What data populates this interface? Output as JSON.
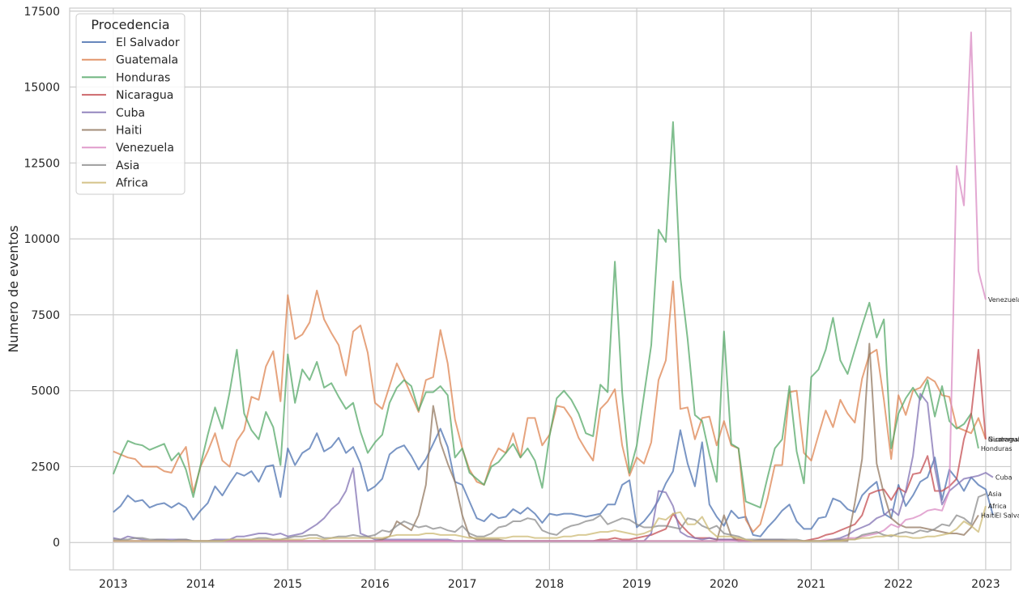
{
  "chart_data": {
    "type": "line",
    "xlabel": "",
    "ylabel": "Numero de eventos",
    "legend_title": "Procedencia",
    "legend_position": "top-left",
    "grid": true,
    "xlim": [
      "2012-07-01",
      "2023-04-15"
    ],
    "ylim": [
      -900,
      17600
    ],
    "x_ticks": [
      "2013",
      "2014",
      "2015",
      "2016",
      "2017",
      "2018",
      "2019",
      "2020",
      "2021",
      "2022",
      "2023"
    ],
    "y_ticks": [
      0,
      2500,
      5000,
      7500,
      10000,
      12500,
      15000,
      17500
    ],
    "x_start_month": "2013-01",
    "series": [
      {
        "name": "El Salvador",
        "color": "#4c72b0",
        "end_label": "El Salvador",
        "values": [
          1000,
          1200,
          1550,
          1350,
          1400,
          1150,
          1250,
          1300,
          1150,
          1300,
          1150,
          750,
          1050,
          1300,
          1850,
          1550,
          1950,
          2300,
          2200,
          2350,
          2000,
          2500,
          2550,
          1500,
          3100,
          2550,
          2950,
          3100,
          3600,
          3000,
          3150,
          3450,
          2950,
          3150,
          2600,
          1700,
          1850,
          2100,
          2900,
          3100,
          3200,
          2850,
          2400,
          2750,
          3250,
          3750,
          3150,
          2000,
          1900,
          1350,
          800,
          700,
          950,
          800,
          850,
          1100,
          950,
          1150,
          950,
          650,
          950,
          900,
          950,
          950,
          900,
          850,
          900,
          950,
          1250,
          1250,
          1900,
          2050,
          500,
          700,
          1000,
          1400,
          1950,
          2350,
          3700,
          2600,
          1850,
          3300,
          1250,
          850,
          550,
          1050,
          800,
          850,
          250,
          200,
          500,
          750,
          1050,
          1250,
          700,
          450,
          450,
          800,
          850,
          1450,
          1350,
          1100,
          1000,
          1550,
          1800,
          2000,
          950,
          800,
          1900,
          1200,
          1550,
          2000,
          2150,
          2800,
          1400,
          2400,
          2100,
          1700,
          2150,
          1900,
          1750,
          900
        ]
      },
      {
        "name": "Guatemala",
        "color": "#dd8452",
        "end_label": "Guatemala",
        "values": [
          3000,
          2900,
          2800,
          2750,
          2500,
          2500,
          2500,
          2350,
          2300,
          2800,
          3150,
          1650,
          2500,
          3000,
          3600,
          2700,
          2500,
          3350,
          3700,
          4800,
          4700,
          5800,
          6300,
          4650,
          8150,
          6700,
          6850,
          7250,
          8300,
          7350,
          6900,
          6500,
          5500,
          6950,
          7150,
          6250,
          4600,
          4400,
          5150,
          5900,
          5400,
          4850,
          4300,
          5350,
          5450,
          7000,
          5900,
          4050,
          3100,
          2400,
          2000,
          1900,
          2650,
          3100,
          2950,
          3600,
          2800,
          4100,
          4100,
          3200,
          3550,
          4500,
          4450,
          4100,
          3450,
          3050,
          2700,
          4400,
          4650,
          5050,
          3200,
          2200,
          2800,
          2600,
          3300,
          5350,
          6000,
          8600,
          4400,
          4450,
          3400,
          4100,
          4150,
          3200,
          4000,
          3200,
          3100,
          750,
          350,
          600,
          1450,
          2550,
          2550,
          4950,
          5000,
          2950,
          2700,
          3550,
          4350,
          3800,
          4700,
          4250,
          3950,
          5400,
          6200,
          6350,
          4700,
          2750,
          4850,
          4200,
          5000,
          5100,
          5450,
          5300,
          4850,
          4800,
          3800,
          3700,
          3600,
          4100,
          3400
        ]
      },
      {
        "name": "Honduras",
        "color": "#55a868",
        "end_label": "Honduras",
        "values": [
          2250,
          2850,
          3350,
          3250,
          3200,
          3050,
          3150,
          3250,
          2700,
          2950,
          2400,
          1500,
          2550,
          3550,
          4450,
          3750,
          4950,
          6350,
          4250,
          3700,
          3400,
          4300,
          3800,
          2550,
          6200,
          4600,
          5700,
          5350,
          5950,
          5100,
          5250,
          4800,
          4400,
          4600,
          3650,
          2950,
          3300,
          3550,
          4600,
          5100,
          5350,
          5150,
          4350,
          4950,
          4950,
          5150,
          4850,
          2800,
          3100,
          2300,
          2100,
          1900,
          2500,
          2650,
          2950,
          3250,
          2800,
          3100,
          2700,
          1800,
          3500,
          4750,
          5000,
          4700,
          4250,
          3600,
          3500,
          5200,
          4950,
          9250,
          4950,
          2300,
          3200,
          4850,
          6500,
          10300,
          9900,
          13850,
          8750,
          6700,
          4200,
          4000,
          2900,
          2000,
          6950,
          3250,
          3100,
          1350,
          1250,
          1150,
          2150,
          3100,
          3400,
          5150,
          3000,
          1950,
          5450,
          5700,
          6350,
          7400,
          6000,
          5550,
          6350,
          7150,
          7900,
          6750,
          7350,
          3100,
          4250,
          4750,
          5100,
          4700,
          5350,
          4150,
          5150,
          4000,
          3750,
          3900,
          4250,
          3100
        ]
      },
      {
        "name": "Nicaragua",
        "color": "#c44e52",
        "end_label": "Nicaragua",
        "values": [
          50,
          50,
          50,
          50,
          50,
          50,
          50,
          50,
          50,
          50,
          50,
          50,
          50,
          50,
          50,
          50,
          50,
          50,
          50,
          50,
          50,
          50,
          50,
          50,
          50,
          50,
          50,
          50,
          50,
          50,
          50,
          50,
          50,
          50,
          50,
          50,
          50,
          50,
          50,
          50,
          50,
          50,
          50,
          50,
          50,
          50,
          50,
          50,
          50,
          50,
          50,
          50,
          50,
          50,
          50,
          50,
          50,
          50,
          50,
          50,
          50,
          50,
          50,
          50,
          50,
          50,
          50,
          100,
          100,
          150,
          100,
          100,
          150,
          200,
          250,
          350,
          450,
          950,
          600,
          350,
          150,
          150,
          150,
          100,
          100,
          100,
          100,
          50,
          50,
          50,
          50,
          50,
          50,
          50,
          50,
          50,
          100,
          150,
          250,
          300,
          400,
          500,
          600,
          900,
          1600,
          1700,
          1750,
          1400,
          1800,
          1650,
          2250,
          2300,
          2850,
          1700,
          1700,
          1850,
          2100,
          3400,
          4200,
          6350,
          3400
        ]
      },
      {
        "name": "Cuba",
        "color": "#8172b3",
        "end_label": "Cuba",
        "values": [
          150,
          100,
          200,
          150,
          100,
          50,
          100,
          100,
          100,
          100,
          100,
          50,
          50,
          50,
          100,
          100,
          100,
          200,
          200,
          250,
          300,
          300,
          250,
          300,
          200,
          250,
          300,
          450,
          600,
          800,
          1100,
          1300,
          1700,
          2450,
          300,
          200,
          100,
          100,
          100,
          100,
          100,
          100,
          100,
          100,
          100,
          100,
          100,
          50,
          50,
          50,
          50,
          50,
          50,
          50,
          50,
          50,
          50,
          50,
          50,
          50,
          50,
          50,
          50,
          50,
          50,
          50,
          50,
          50,
          50,
          50,
          50,
          50,
          50,
          50,
          300,
          1700,
          1650,
          1200,
          350,
          200,
          150,
          100,
          150,
          100,
          100,
          100,
          50,
          50,
          50,
          100,
          100,
          100,
          100,
          50,
          50,
          50,
          50,
          50,
          50,
          100,
          150,
          250,
          400,
          500,
          600,
          800,
          900,
          1100,
          900,
          1700,
          2850,
          4900,
          4600,
          2450,
          1250,
          1700,
          1900,
          2100,
          2150,
          2200,
          2300,
          2150
        ]
      },
      {
        "name": "Haiti",
        "color": "#937860",
        "end_label": "Haiti",
        "values": [
          50,
          50,
          50,
          50,
          50,
          50,
          50,
          50,
          50,
          50,
          50,
          50,
          50,
          50,
          50,
          50,
          50,
          50,
          50,
          50,
          50,
          50,
          50,
          50,
          50,
          50,
          50,
          50,
          50,
          50,
          50,
          50,
          50,
          50,
          50,
          50,
          50,
          100,
          200,
          700,
          550,
          400,
          900,
          1900,
          4500,
          3300,
          2600,
          2000,
          900,
          200,
          100,
          100,
          100,
          100,
          50,
          50,
          50,
          50,
          50,
          50,
          50,
          50,
          50,
          50,
          50,
          50,
          50,
          50,
          50,
          50,
          50,
          50,
          50,
          50,
          50,
          50,
          50,
          50,
          50,
          50,
          50,
          50,
          50,
          50,
          900,
          200,
          50,
          50,
          50,
          50,
          50,
          50,
          50,
          50,
          50,
          50,
          50,
          50,
          50,
          50,
          50,
          50,
          1300,
          2750,
          6550,
          2600,
          1600,
          800,
          600,
          500,
          500,
          500,
          450,
          400,
          350,
          300,
          300,
          250,
          500,
          900
        ]
      },
      {
        "name": "Venezuela",
        "color": "#da8bc3",
        "end_label": "Venezuela",
        "values": [
          50,
          50,
          50,
          50,
          50,
          50,
          50,
          50,
          50,
          50,
          50,
          50,
          50,
          50,
          50,
          50,
          50,
          50,
          50,
          50,
          50,
          50,
          50,
          50,
          50,
          50,
          50,
          50,
          50,
          50,
          50,
          50,
          50,
          50,
          50,
          50,
          50,
          50,
          50,
          50,
          50,
          50,
          50,
          50,
          50,
          50,
          50,
          50,
          50,
          50,
          50,
          50,
          50,
          50,
          50,
          50,
          50,
          50,
          50,
          50,
          50,
          50,
          50,
          50,
          50,
          50,
          50,
          50,
          50,
          50,
          50,
          50,
          50,
          50,
          50,
          50,
          50,
          50,
          50,
          50,
          50,
          50,
          50,
          50,
          50,
          50,
          50,
          50,
          50,
          50,
          50,
          50,
          50,
          50,
          50,
          50,
          50,
          50,
          100,
          100,
          100,
          150,
          150,
          200,
          250,
          300,
          400,
          600,
          500,
          750,
          800,
          900,
          1050,
          1100,
          1050,
          1700,
          12400,
          11100,
          16800,
          8950,
          8000
        ]
      },
      {
        "name": "Asia",
        "color": "#8c8c8c",
        "end_label": "Asia",
        "values": [
          100,
          100,
          100,
          150,
          150,
          100,
          100,
          100,
          50,
          100,
          100,
          50,
          50,
          50,
          50,
          50,
          100,
          100,
          100,
          100,
          150,
          150,
          100,
          100,
          150,
          200,
          200,
          250,
          250,
          150,
          150,
          200,
          200,
          250,
          200,
          200,
          250,
          400,
          350,
          550,
          700,
          600,
          500,
          550,
          450,
          500,
          400,
          350,
          550,
          300,
          200,
          200,
          300,
          500,
          550,
          700,
          700,
          800,
          750,
          400,
          300,
          250,
          450,
          550,
          600,
          700,
          750,
          900,
          600,
          700,
          800,
          750,
          600,
          500,
          500,
          550,
          550,
          500,
          450,
          800,
          750,
          550,
          450,
          550,
          300,
          250,
          200,
          100,
          100,
          100,
          100,
          100,
          100,
          100,
          100,
          50,
          50,
          50,
          50,
          100,
          100,
          100,
          100,
          250,
          300,
          350,
          250,
          200,
          300,
          350,
          300,
          400,
          350,
          450,
          600,
          550,
          900,
          800,
          600,
          1500,
          1600
        ]
      },
      {
        "name": "Africa",
        "color": "#ccb974",
        "end_label": "Africa",
        "values": [
          50,
          50,
          50,
          50,
          50,
          50,
          50,
          50,
          50,
          50,
          50,
          50,
          50,
          50,
          50,
          50,
          100,
          100,
          100,
          100,
          100,
          100,
          100,
          100,
          100,
          100,
          100,
          150,
          150,
          100,
          150,
          150,
          150,
          150,
          150,
          150,
          150,
          150,
          200,
          250,
          250,
          250,
          250,
          300,
          300,
          250,
          250,
          250,
          200,
          150,
          150,
          150,
          150,
          150,
          150,
          200,
          200,
          200,
          150,
          150,
          150,
          150,
          200,
          200,
          250,
          250,
          300,
          350,
          350,
          400,
          350,
          300,
          250,
          300,
          400,
          800,
          750,
          950,
          1000,
          600,
          600,
          850,
          400,
          200,
          200,
          200,
          150,
          100,
          50,
          50,
          50,
          50,
          50,
          50,
          50,
          50,
          50,
          50,
          50,
          50,
          50,
          100,
          100,
          150,
          150,
          200,
          200,
          250,
          200,
          200,
          150,
          150,
          200,
          200,
          250,
          300,
          450,
          700,
          550,
          350,
          1200
        ]
      }
    ]
  }
}
